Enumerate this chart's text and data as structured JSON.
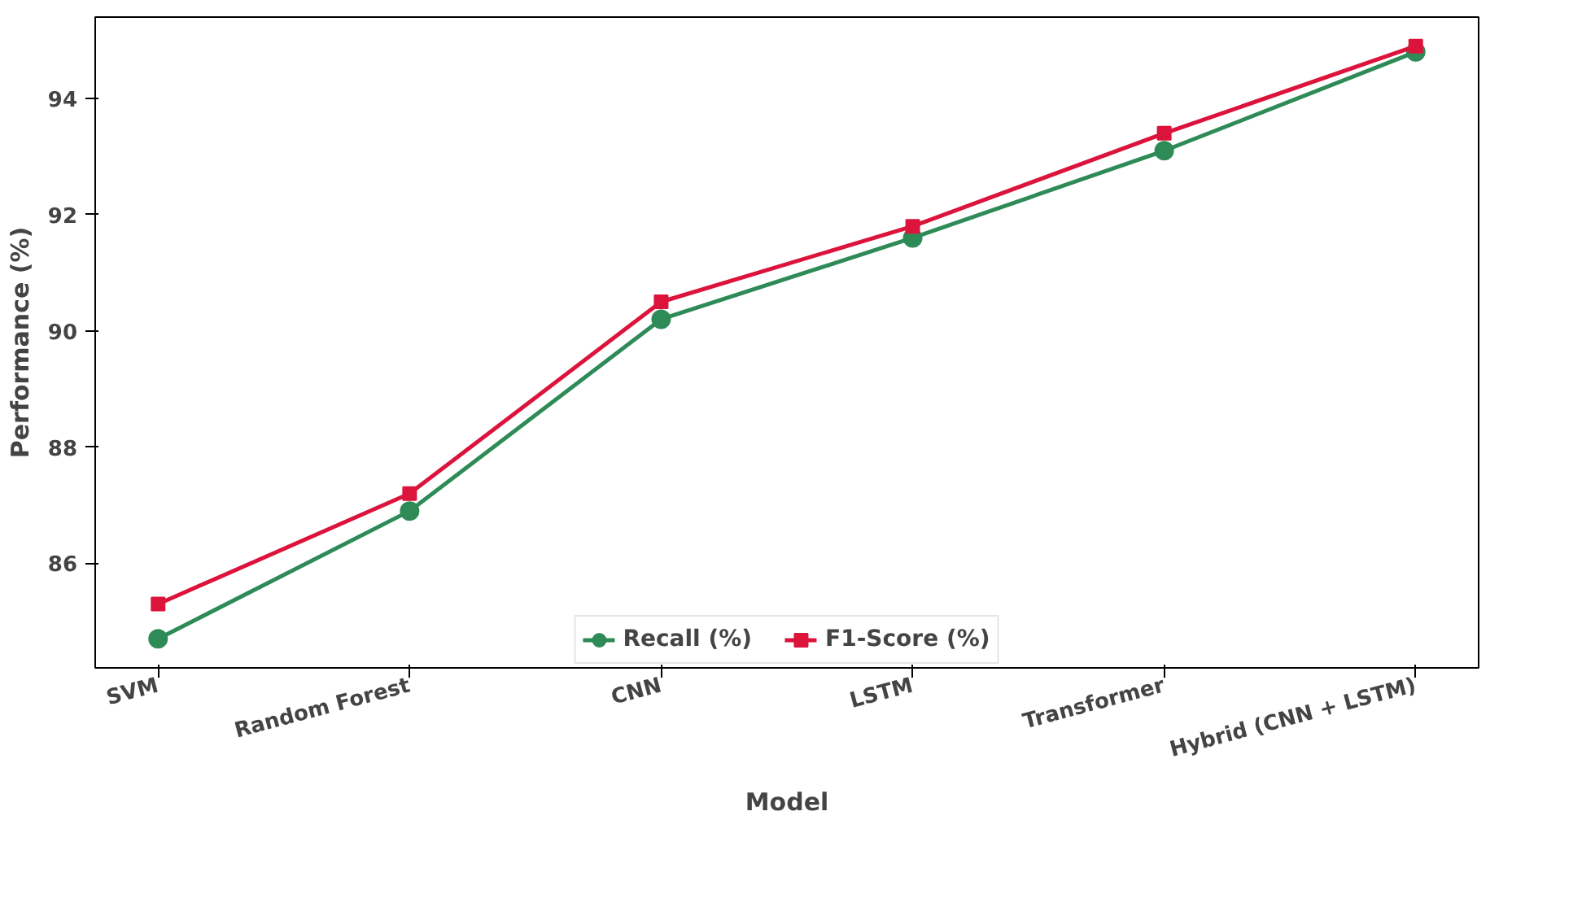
{
  "chart_data": {
    "type": "line",
    "xlabel": "Model",
    "ylabel": "Performance (%)",
    "categories": [
      "SVM",
      "Random Forest",
      "CNN",
      "LSTM",
      "Transformer",
      "Hybrid (CNN + LSTM)"
    ],
    "series": [
      {
        "name": "Recall (%)",
        "color": "#2e8b57",
        "marker": "circle",
        "values": [
          84.7,
          86.9,
          90.2,
          91.6,
          93.1,
          94.8
        ]
      },
      {
        "name": "F1-Score (%)",
        "color": "#dc143c",
        "marker": "square",
        "values": [
          85.3,
          87.2,
          90.5,
          91.8,
          93.4,
          94.9
        ]
      }
    ],
    "ylim": [
      84.2,
      95.4
    ],
    "yticks": [
      86,
      88,
      90,
      92,
      94
    ],
    "grid": false,
    "legend": "bottom",
    "line_style": "solid"
  }
}
